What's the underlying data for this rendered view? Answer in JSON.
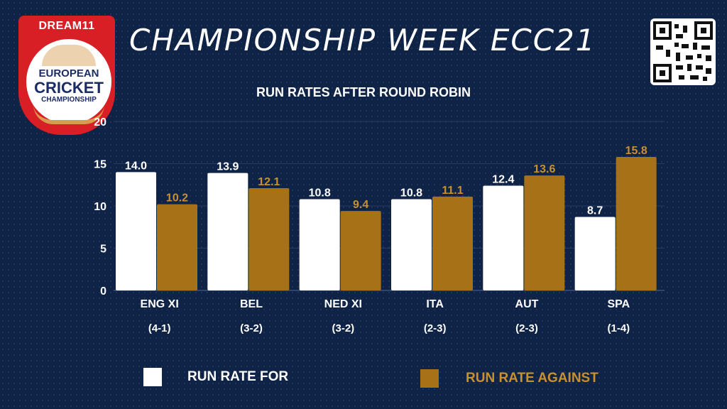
{
  "logo": {
    "brand": "DREAM11",
    "line1": "EUROPEAN",
    "line2": "CRICKET",
    "line3": "CHAMPIONSHIP"
  },
  "header": {
    "title": "CHAMPIONSHIP WEEK ECC21"
  },
  "colors": {
    "background": "#0f2347",
    "for": "#ffffff",
    "against": "#a67117",
    "against_label": "#c8902e"
  },
  "chart_data": {
    "type": "bar",
    "title": "RUN RATES AFTER ROUND ROBIN",
    "categories": [
      "ENG XI",
      "BEL",
      "NED XI",
      "ITA",
      "AUT",
      "SPA"
    ],
    "records": [
      "(4-1)",
      "(3-2)",
      "(3-2)",
      "(2-3)",
      "(2-3)",
      "(1-4)"
    ],
    "series": [
      {
        "name": "RUN RATE FOR",
        "values": [
          14.0,
          13.9,
          10.8,
          10.8,
          12.4,
          8.7
        ]
      },
      {
        "name": "RUN RATE AGAINST",
        "values": [
          10.2,
          12.1,
          9.4,
          11.1,
          13.6,
          15.8
        ]
      }
    ],
    "value_labels": [
      [
        "14.0",
        "13.9",
        "10.8",
        "10.8",
        "12.4",
        "8.7"
      ],
      [
        "10.2",
        "12.1",
        "9.4",
        "11.1",
        "13.6",
        "15.8"
      ]
    ],
    "ylim": [
      0,
      20
    ],
    "yticks": [
      "0",
      "5",
      "10",
      "15",
      "20"
    ],
    "grid": true,
    "legend_position": "bottom"
  }
}
